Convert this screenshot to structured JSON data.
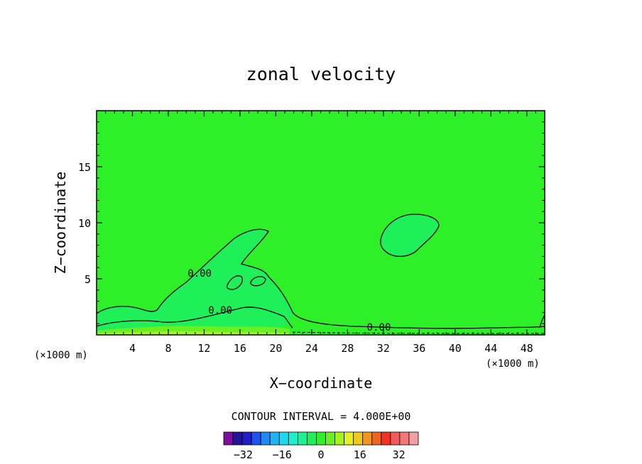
{
  "chart_data": {
    "type": "contour",
    "title": "zonal velocity",
    "xlabel": "X−coordinate",
    "ylabel": "Z−coordinate",
    "x_unit_left": "(×1000 m)",
    "x_unit_right": "(×1000 m)",
    "xlim": [
      0,
      50
    ],
    "ylim": [
      0,
      20
    ],
    "x_ticks": [
      4,
      8,
      12,
      16,
      20,
      24,
      28,
      32,
      36,
      40,
      44,
      48
    ],
    "x_tick_labels": [
      "4",
      "8",
      "12",
      "16",
      "20",
      "24",
      "28",
      "32",
      "36",
      "40",
      "44",
      "48"
    ],
    "y_ticks": [
      5,
      10,
      15
    ],
    "y_tick_labels": [
      "5",
      "10",
      "15"
    ],
    "contour_labels": [
      {
        "text": "0.00",
        "x": 11.5,
        "y": 5.5
      },
      {
        "text": "0.00",
        "x": 13.8,
        "y": 2.2
      },
      {
        "text": "0.00",
        "x": 31.5,
        "y": 0.7
      }
    ],
    "contour_interval_text": "CONTOUR INTERVAL = 4.000E+00",
    "colorbar": {
      "colors": [
        "#7a0fa0",
        "#23159a",
        "#1f1fc8",
        "#1f52f2",
        "#1f8af2",
        "#1fb4f2",
        "#1fd8f0",
        "#1ff0cc",
        "#1ff096",
        "#1ff05a",
        "#2ef028",
        "#6af020",
        "#a8f020",
        "#e6f020",
        "#f0c81e",
        "#f0961e",
        "#f0641e",
        "#f0321e",
        "#f05a5a",
        "#f07878",
        "#f0a0a0"
      ],
      "tick_labels": [
        "−32",
        "−16",
        "0",
        "16",
        "32"
      ],
      "tick_values": [
        -32,
        -16,
        0,
        16,
        32
      ],
      "range": [
        -40,
        40
      ]
    },
    "fill_colors": {
      "background": "#2ef028",
      "band_0_4": "#1ff05a",
      "band_4_8": "#6af020",
      "band_8_12": "#a8f020"
    }
  }
}
